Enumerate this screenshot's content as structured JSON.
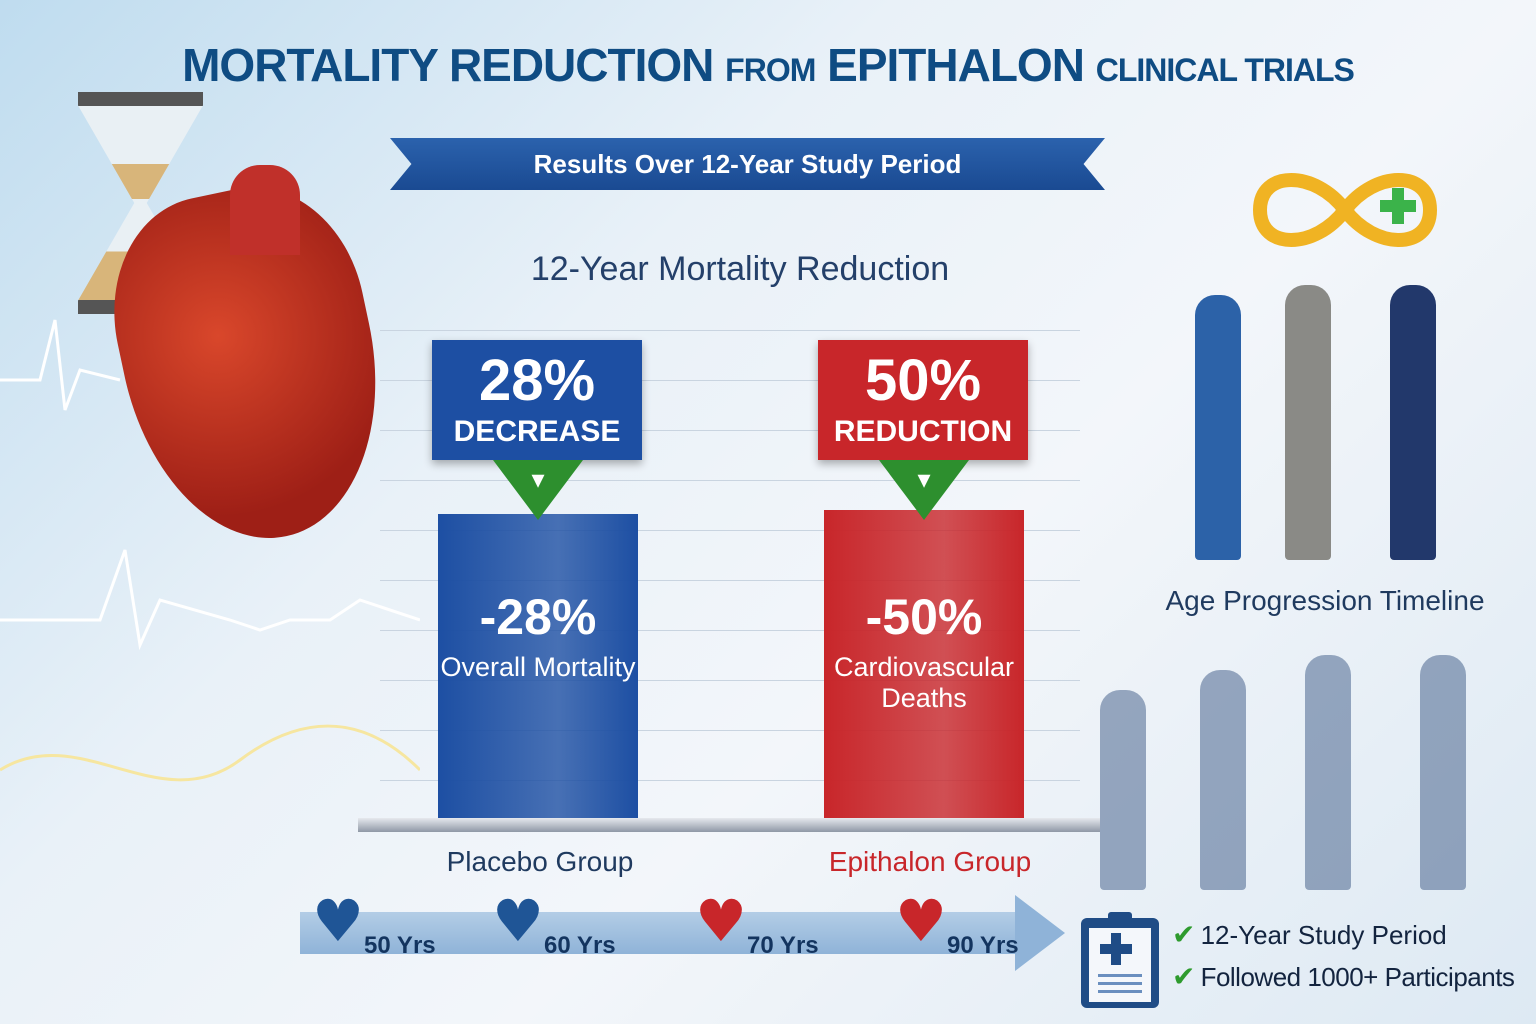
{
  "title": {
    "part1": "MORTALITY REDUCTION",
    "part2": "FROM",
    "part3": "EPITHALON",
    "part4": "CLINICAL TRIALS"
  },
  "banner": "Results Over 12-Year Study Period",
  "chart_data": {
    "type": "bar",
    "title": "12-Year Mortality Reduction",
    "categories": [
      "Placebo Group",
      "Epithalon Group"
    ],
    "values": [
      28,
      50
    ],
    "unit": "%",
    "bars": [
      {
        "category": "Placebo Group",
        "headline": "28%",
        "headline_label": "DECREASE",
        "value_label": "-28%",
        "description": "Overall Mortality",
        "color": "#1d4fa3"
      },
      {
        "category": "Epithalon Group",
        "headline": "50%",
        "headline_label": "REDUCTION",
        "value_label": "-50%",
        "description": "Cardiovascular Deaths",
        "color": "#c8262a"
      }
    ]
  },
  "age_progression": {
    "label": "Age Progression Timeline"
  },
  "timeline": [
    {
      "label": "50 Yrs",
      "heart": "blue"
    },
    {
      "label": "60 Yrs",
      "heart": "blue"
    },
    {
      "label": "70 Yrs",
      "heart": "red"
    },
    {
      "label": "90 Yrs",
      "heart": "red"
    }
  ],
  "notes": [
    "12-Year Study Period",
    "Followed 1000+ Participants"
  ],
  "colors": {
    "title": "#0f4c83",
    "placebo": "#1d4fa3",
    "epithalon": "#c8262a",
    "check": "#2e9b2e"
  }
}
